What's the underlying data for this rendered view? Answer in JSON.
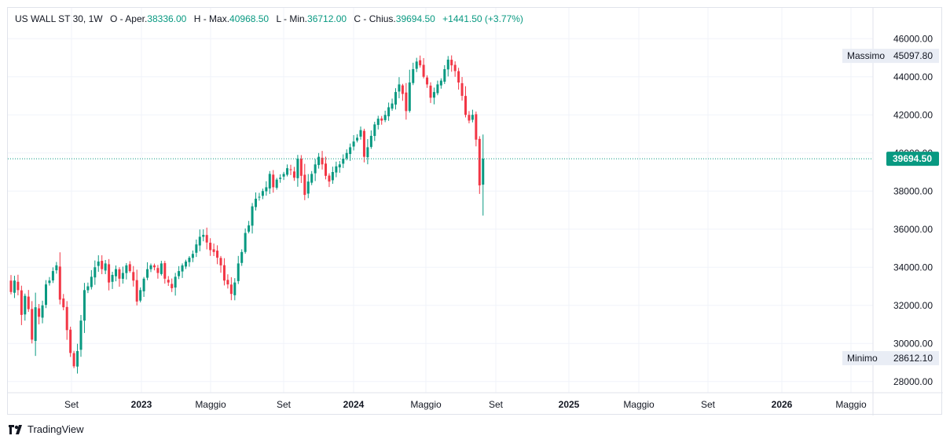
{
  "header": {
    "symbol": "US WALL ST 30, 1W",
    "open_label": "O - Aper.",
    "open_value": "38336.00",
    "high_label": "H - Max.",
    "high_value": "40968.50",
    "low_label": "L - Min.",
    "low_value": "36712.00",
    "close_label": "C - Chius.",
    "close_value": "39694.50",
    "change": "+1441.50 (+3.77%)"
  },
  "brand": {
    "name": "TradingView",
    "icon": "tradingview-logo-icon"
  },
  "colors": {
    "up": "#089981",
    "down": "#f23645",
    "grid": "#f0f3fa",
    "axis_text": "#131722",
    "badge_bg": "#e9edf5"
  },
  "chart_data": {
    "type": "candlestick",
    "interval": "1W",
    "ylim": [
      27000,
      46600
    ],
    "y_ticks": [
      "46000.00",
      "44000.00",
      "42000.00",
      "40000.00",
      "38000.00",
      "36000.00",
      "34000.00",
      "32000.00",
      "30000.00",
      "28000.00"
    ],
    "x_ticks": [
      "Set",
      "2023",
      "Maggio",
      "Set",
      "2024",
      "Maggio",
      "Set",
      "2025",
      "Maggio",
      "Set",
      "2026",
      "Maggio"
    ],
    "last_price": "39694.50",
    "max_label": "Massimo",
    "max_value": "45097.80",
    "min_label": "Minimo",
    "min_value": "28612.10",
    "close_series": [
      32700,
      33300,
      32800,
      31500,
      32500,
      31800,
      30200,
      31900,
      31400,
      32000,
      33100,
      33300,
      33800,
      34100,
      32300,
      31900,
      30700,
      29500,
      28800,
      29600,
      31200,
      32800,
      33000,
      33500,
      34000,
      34300,
      33900,
      34200,
      33200,
      33600,
      33900,
      33400,
      33700,
      34100,
      33800,
      33300,
      32200,
      32800,
      33400,
      33900,
      34100,
      34000,
      33700,
      34200,
      33400,
      33200,
      32900,
      33500,
      33800,
      34100,
      34300,
      34500,
      34700,
      35200,
      35600,
      35700,
      35300,
      34900,
      34800,
      34500,
      34100,
      33300,
      33100,
      32600,
      33200,
      34200,
      34800,
      35800,
      36200,
      37200,
      37600,
      37700,
      38000,
      38200,
      38900,
      38200,
      38600,
      38700,
      38900,
      39200,
      39100,
      38700,
      39700,
      38800,
      37800,
      38500,
      38900,
      39400,
      39800,
      39400,
      38800,
      38500,
      39000,
      39300,
      39400,
      39700,
      40000,
      40300,
      40600,
      40800,
      41200,
      39800,
      40300,
      40900,
      41500,
      41800,
      41700,
      42000,
      42400,
      42600,
      43200,
      43600,
      43100,
      42200,
      43700,
      44400,
      44800,
      44600,
      44000,
      43600,
      42900,
      43200,
      43600,
      43800,
      44400,
      44900,
      44600,
      44300,
      43700,
      43000,
      42000,
      41700,
      42000,
      40700,
      38300,
      39694.5
    ],
    "last_candle": {
      "open": 38336.0,
      "high": 40968.5,
      "low": 36712.0,
      "close": 39694.5
    }
  }
}
